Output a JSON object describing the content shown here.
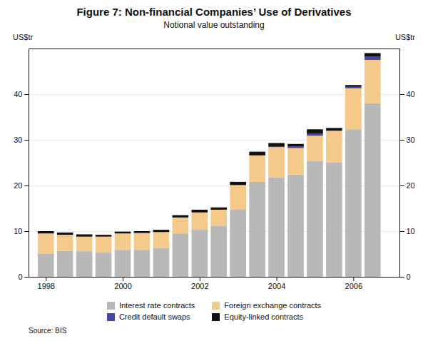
{
  "chart_data": {
    "type": "bar",
    "stacked": true,
    "title": "Figure 7: Non-financial Companies’ Use of Derivatives",
    "subtitle": "Notional value outstanding",
    "y_label": "US$tr",
    "y2_label": "US$tr",
    "source": "Source: BIS",
    "x": [
      1998,
      1998.5,
      1999,
      1999.5,
      2000,
      2000.5,
      2001,
      2001.5,
      2002,
      2002.5,
      2003,
      2003.5,
      2004,
      2004.5,
      2005,
      2005.5,
      2006,
      2006.5
    ],
    "series": [
      {
        "name": "Interest rate contracts",
        "color": "#b8b8b8",
        "values": [
          5.0,
          5.7,
          5.6,
          5.3,
          5.9,
          5.9,
          6.3,
          9.5,
          10.3,
          11.2,
          14.8,
          20.8,
          21.8,
          22.4,
          25.4,
          25.0,
          32.3,
          38.0
        ]
      },
      {
        "name": "Foreign exchange contracts",
        "color": "#f5c98a",
        "values": [
          4.5,
          3.5,
          3.2,
          3.5,
          3.6,
          3.7,
          3.5,
          3.5,
          3.8,
          3.5,
          5.3,
          5.8,
          6.6,
          5.8,
          5.5,
          7.0,
          9.0,
          9.5
        ]
      },
      {
        "name": "Credit default swaps",
        "color": "#4444aa",
        "values": [
          0.0,
          0.0,
          0.0,
          0.0,
          0.0,
          0.0,
          0.0,
          0.0,
          0.0,
          0.0,
          0.0,
          0.0,
          0.2,
          0.3,
          0.5,
          0.0,
          0.3,
          0.7
        ]
      },
      {
        "name": "Equity-linked contracts",
        "color": "#111111",
        "values": [
          0.5,
          0.5,
          0.5,
          0.4,
          0.4,
          0.4,
          0.5,
          0.5,
          0.6,
          0.5,
          0.7,
          0.8,
          0.7,
          0.6,
          0.9,
          0.6,
          0.4,
          0.8
        ]
      }
    ],
    "xlim": [
      1997.55,
      2007.2
    ],
    "xticks": [
      1998,
      2000,
      2002,
      2004,
      2006
    ],
    "ylim": [
      0,
      50
    ],
    "yticks": [
      0,
      10,
      20,
      30,
      40
    ],
    "y2lim": [
      0,
      50
    ],
    "y2ticks": [
      0,
      10,
      20,
      30,
      40
    ],
    "grid": true,
    "legend": "bottom"
  }
}
